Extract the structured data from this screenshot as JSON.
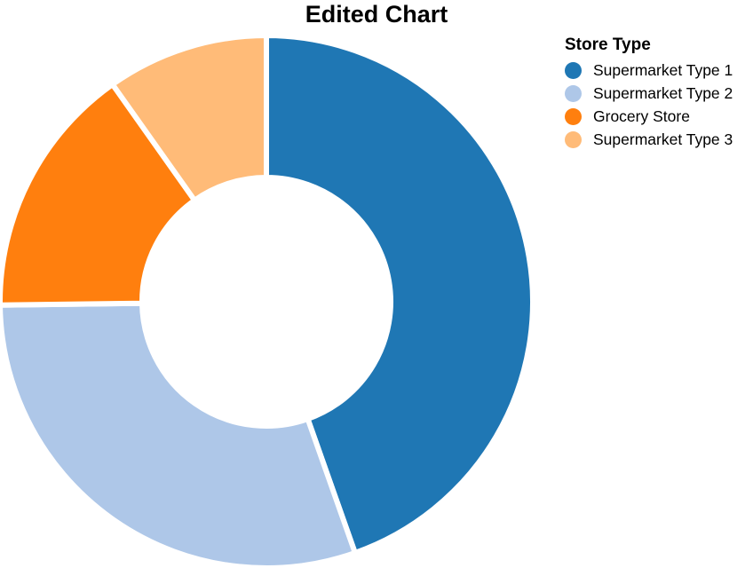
{
  "chart_data": {
    "type": "pie",
    "variant": "donut",
    "title": "Edited Chart",
    "legend_title": "Store Type",
    "legend_position": "top-right",
    "slices": [
      {
        "label": "Supermarket Type 1",
        "value": 44.6,
        "color": "#1f77b4"
      },
      {
        "label": "Supermarket Type 2",
        "value": 30.2,
        "color": "#aec7e8"
      },
      {
        "label": "Grocery Store",
        "value": 15.4,
        "color": "#ff7f0e"
      },
      {
        "label": "Supermarket Type 3",
        "value": 9.8,
        "color": "#ffbb78"
      }
    ]
  }
}
